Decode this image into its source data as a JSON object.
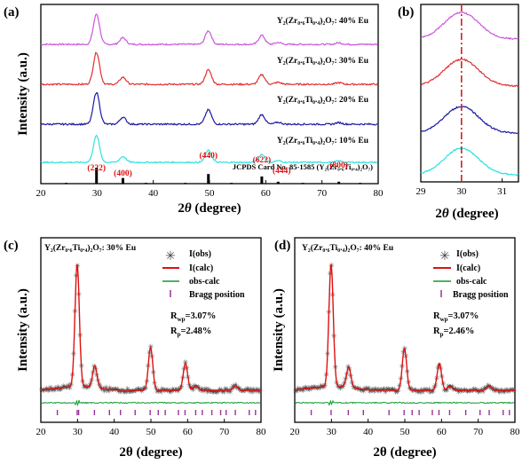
{
  "panels": {
    "a": {
      "label": "(a)",
      "ylabel": "Intensity (a.u.)",
      "xlabel_symbol": "2",
      "xlabel_italic": "θ",
      "xlabel_unit": " (degree)",
      "xticks": [
        "20",
        "30",
        "40",
        "50",
        "60",
        "70",
        "80"
      ],
      "curve_labels": [
        "Y₂(Zr₀.₆Ti₀.₄)₂O₇: 40% Eu",
        "Y₂(Zr₀.₆Ti₀.₄)₂O₇: 30% Eu",
        "Y₂(Zr₀.₆Ti₀.₄)₂O₇: 20% Eu",
        "Y₂(Zr₀.₆Ti₀.₄)₂O₇: 10% Eu"
      ],
      "card_label": "JCPDS Card No. 85-1585  (Y₂(Zr₀.₆Ti₀.₄)₂O₇)",
      "hkl": [
        "(222)",
        "(400)",
        "(440)",
        "(622)",
        "(444)",
        "(800)"
      ]
    },
    "b": {
      "label": "(b)",
      "xlabel_symbol": "2",
      "xlabel_italic": "θ",
      "xlabel_unit": " (degree)",
      "xticks": [
        "29",
        "30",
        "31"
      ]
    },
    "c": {
      "label": "(c)",
      "title": "Y₂(Zr₀.₆Ti₀.₄)₂O₇: 30% Eu",
      "ylabel": "Intensity (a.u.)",
      "xlabel": "2θ (degree)",
      "xticks": [
        "20",
        "30",
        "40",
        "50",
        "60",
        "70",
        "80"
      ],
      "legend": [
        "I(obs)",
        "I(calc)",
        "obs-calc",
        "Bragg position"
      ],
      "rwp": "R",
      "rwp_sub": "wp",
      "rwp_val": "=3.07%",
      "rp": "R",
      "rp_sub": "p",
      "rp_val": "=2.48%"
    },
    "d": {
      "label": "(d)",
      "title": "Y₂(Zr₀.₆Ti₀.₄)₂O₇: 40% Eu",
      "ylabel": "Intensity (a.u.)",
      "xlabel": "2θ (degree)",
      "xticks": [
        "20",
        "30",
        "40",
        "50",
        "60",
        "70",
        "80"
      ],
      "legend": [
        "I(obs)",
        "I(calc)",
        "obs-calc",
        "Bragg position"
      ],
      "rwp": "R",
      "rwp_sub": "wp",
      "rwp_val": "=3.07%",
      "rp": "R",
      "rp_sub": "p",
      "rp_val": "=2.46%"
    }
  },
  "colors": {
    "eu40": "#cc55dd",
    "eu30": "#e03030",
    "eu20": "#1a1aa0",
    "eu10": "#30e0e0",
    "hkl": "#dd1111",
    "obs": "#444444",
    "calc": "#dd1111",
    "diff": "#119933",
    "bragg": "#993399",
    "dashline": "#cc2222"
  },
  "chart_data": [
    {
      "type": "line",
      "panel": "a",
      "x_range": [
        20,
        80
      ],
      "peaks": [
        {
          "hkl": "(222)",
          "x": 29.9,
          "h": 1.0
        },
        {
          "hkl": "(400)",
          "x": 34.6,
          "h": 0.22
        },
        {
          "hkl": "(440)",
          "x": 49.8,
          "h": 0.45
        },
        {
          "hkl": "(622)",
          "x": 59.3,
          "h": 0.3
        },
        {
          "hkl": "(444)",
          "x": 62.2,
          "h": 0.06
        },
        {
          "hkl": "(800)",
          "x": 73.0,
          "h": 0.05
        }
      ],
      "series": [
        {
          "name": "Y₂(Zr₀.₆Ti₀.₄)₂O₇: 40% Eu",
          "color": "#cc55dd"
        },
        {
          "name": "Y₂(Zr₀.₆Ti₀.₄)₂O₇: 30% Eu",
          "color": "#e03030"
        },
        {
          "name": "Y₂(Zr₀.₆Ti₀.₄)₂O₇: 20% Eu",
          "color": "#1a1aa0"
        },
        {
          "name": "Y₂(Zr₀.₆Ti₀.₄)₂O₇: 10% Eu",
          "color": "#30e0e0"
        }
      ],
      "reference_sticks": [
        {
          "x": 29.9,
          "h": 1.0
        },
        {
          "x": 34.6,
          "h": 0.35
        },
        {
          "x": 49.8,
          "h": 0.6
        },
        {
          "x": 59.3,
          "h": 0.45
        },
        {
          "x": 62.2,
          "h": 0.12
        },
        {
          "x": 73.0,
          "h": 0.12
        },
        {
          "x": 24.5,
          "h": 0.05
        },
        {
          "x": 38.7,
          "h": 0.05
        },
        {
          "x": 45.7,
          "h": 0.05
        },
        {
          "x": 53.9,
          "h": 0.05
        },
        {
          "x": 66.6,
          "h": 0.05
        },
        {
          "x": 76.8,
          "h": 0.05
        }
      ]
    },
    {
      "type": "line",
      "panel": "b",
      "x_range": [
        29,
        31.4
      ],
      "reference_line_x": 30.0
    },
    {
      "type": "scatter",
      "panel": "c",
      "x_range": [
        20,
        80
      ],
      "series": [
        {
          "name": "I(obs)"
        },
        {
          "name": "I(calc)"
        },
        {
          "name": "obs-calc"
        },
        {
          "name": "Bragg position"
        }
      ],
      "peaks": [
        {
          "x": 29.9,
          "h": 1.0
        },
        {
          "x": 34.7,
          "h": 0.18
        },
        {
          "x": 49.9,
          "h": 0.35
        },
        {
          "x": 59.4,
          "h": 0.22
        },
        {
          "x": 62.3,
          "h": 0.04
        },
        {
          "x": 73.0,
          "h": 0.04
        }
      ],
      "bragg_positions": [
        24.5,
        29.9,
        30.3,
        34.6,
        38.7,
        41.7,
        45.7,
        49.8,
        52.0,
        53.9,
        57.5,
        59.3,
        62.2,
        64.0,
        66.6,
        69.0,
        70.5,
        73.0,
        76.8,
        78.5
      ]
    },
    {
      "type": "scatter",
      "panel": "d",
      "x_range": [
        20,
        80
      ],
      "series": [
        {
          "name": "I(obs)"
        },
        {
          "name": "I(calc)"
        },
        {
          "name": "obs-calc"
        },
        {
          "name": "Bragg position"
        }
      ],
      "peaks": [
        {
          "x": 29.9,
          "h": 1.0
        },
        {
          "x": 34.7,
          "h": 0.17
        },
        {
          "x": 49.9,
          "h": 0.34
        },
        {
          "x": 59.4,
          "h": 0.22
        },
        {
          "x": 62.3,
          "h": 0.04
        },
        {
          "x": 73.0,
          "h": 0.04
        }
      ],
      "bragg_positions": [
        24.5,
        29.9,
        34.6,
        38.7,
        45.7,
        49.8,
        52.0,
        53.9,
        57.5,
        59.3,
        62.2,
        66.6,
        70.5,
        73.0,
        76.8,
        78.5
      ]
    }
  ]
}
